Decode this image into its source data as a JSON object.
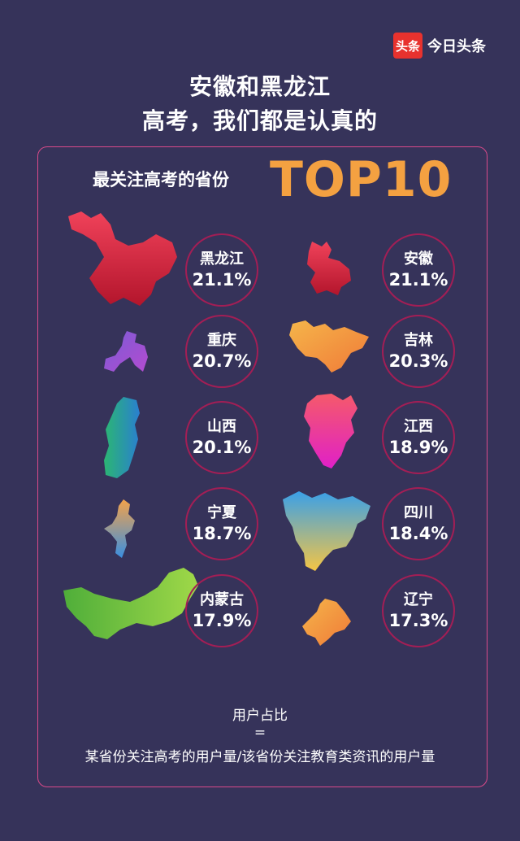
{
  "brand": {
    "logo_text": "头条",
    "name": "今日头条"
  },
  "title_line1": "安徽和黑龙江",
  "title_line2": "高考，我们都是认真的",
  "subtitle": "最关注高考的省份",
  "badge": "TOP10",
  "chart_data": {
    "type": "table",
    "title": "最关注高考的省份 TOP10",
    "items": [
      {
        "name": "黑龙江",
        "value": 21.1,
        "label": "21.1%"
      },
      {
        "name": "安徽",
        "value": 21.1,
        "label": "21.1%"
      },
      {
        "name": "重庆",
        "value": 20.7,
        "label": "20.7%"
      },
      {
        "name": "吉林",
        "value": 20.3,
        "label": "20.3%"
      },
      {
        "name": "山西",
        "value": 20.1,
        "label": "20.1%"
      },
      {
        "name": "江西",
        "value": 18.9,
        "label": "18.9%"
      },
      {
        "name": "宁夏",
        "value": 18.7,
        "label": "18.7%"
      },
      {
        "name": "四川",
        "value": 18.4,
        "label": "18.4%"
      },
      {
        "name": "内蒙古",
        "value": 17.9,
        "label": "17.9%"
      },
      {
        "name": "辽宁",
        "value": 17.3,
        "label": "17.3%"
      }
    ]
  },
  "formula": {
    "line1": "用户占比",
    "line2": "=",
    "line3": "某省份关注高考的用户量/该省份关注教育类资讯的用户量"
  }
}
